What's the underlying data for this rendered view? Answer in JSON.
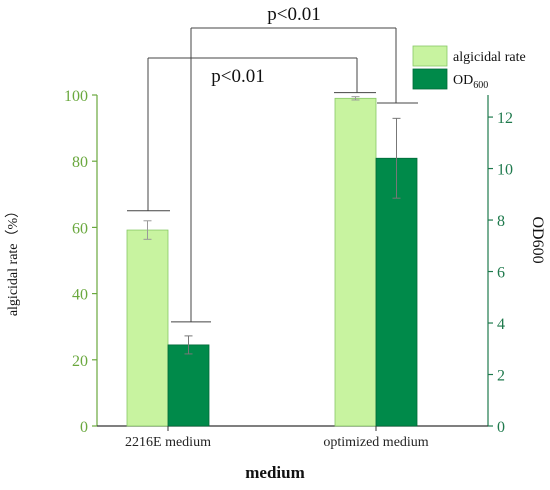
{
  "chart_data": {
    "type": "bar",
    "categories": [
      "2216E medium",
      "optimized medium"
    ],
    "series": [
      {
        "name": "algicidal rate",
        "axis": "left",
        "values": [
          59.2,
          99.0
        ],
        "errors": [
          2.8,
          0.5
        ],
        "color": "#c8f3a0",
        "stroke": "#88c866"
      },
      {
        "name": "OD600",
        "name_main": "OD",
        "name_sub": "600",
        "axis": "right",
        "values": [
          3.15,
          10.4
        ],
        "errors": [
          0.35,
          1.55
        ],
        "color": "#008a4a",
        "stroke": "#006a38"
      }
    ],
    "left_axis": {
      "label": "algicidal rate（%）",
      "ylim": [
        0,
        100
      ],
      "ticks": [
        "0",
        "20",
        "40",
        "60",
        "80",
        "100"
      ],
      "color": "#6aa83e"
    },
    "right_axis": {
      "label": "OD600",
      "ylim": [
        0,
        12.857
      ],
      "ticks": [
        "0",
        "2",
        "4",
        "6",
        "8",
        "10",
        "12"
      ],
      "color": "#1f7a4d"
    },
    "xlabel": "medium",
    "annotations": [
      {
        "text": "p<0.01",
        "compare": "algicidal rate: 2216E medium vs optimized medium"
      },
      {
        "text": "p<0.01",
        "compare": "OD600: 2216E medium vs optimized medium"
      }
    ],
    "legend": "top-right",
    "grid": false
  }
}
